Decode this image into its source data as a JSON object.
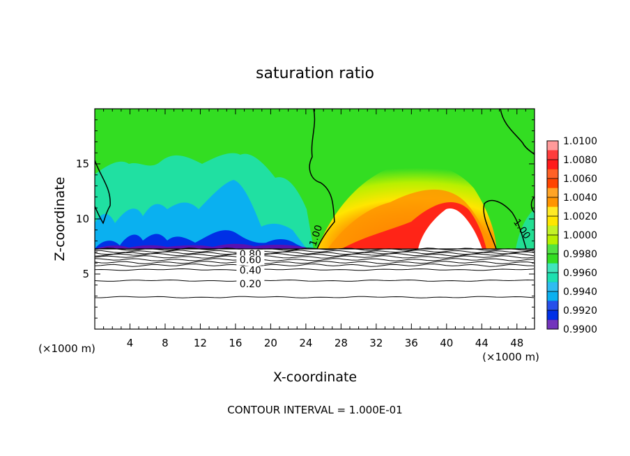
{
  "chart_data": {
    "type": "heatmap",
    "title": "saturation ratio",
    "xlabel": "X-coordinate",
    "ylabel": "Z-coordinate",
    "x_unit_left": "(×1000 m)",
    "x_unit_right": "(×1000 m)",
    "xlim": [
      0,
      50
    ],
    "ylim": [
      0,
      20
    ],
    "x_ticks": [
      4,
      8,
      12,
      16,
      20,
      24,
      28,
      32,
      36,
      40,
      44,
      48
    ],
    "x_tick_labels": [
      "4",
      "8",
      "12",
      "16",
      "20",
      "24",
      "28",
      "32",
      "36",
      "40",
      "44",
      "48"
    ],
    "y_ticks": [
      5,
      10,
      15
    ],
    "y_tick_labels": [
      "5",
      "10",
      "15"
    ],
    "footer": "CONTOUR INTERVAL = 1.000E-01",
    "colorbar": {
      "values": [
        1.01,
        1.008,
        1.006,
        1.004,
        1.002,
        1.0,
        0.998,
        0.996,
        0.994,
        0.992,
        0.99
      ],
      "labels": [
        "1.0100",
        "1.0080",
        "1.0060",
        "1.0040",
        "1.0020",
        "1.0000",
        "0.9980",
        "0.9960",
        "0.9940",
        "0.9920",
        "0.9900"
      ],
      "colors": [
        "#ff9a9a",
        "#ff1a1a",
        "#ff4500",
        "#ff9400",
        "#ffe600",
        "#b8f000",
        "#33dd22",
        "#1ee0b0",
        "#0ab0f0",
        "#0030e6",
        "#5a10b0"
      ]
    },
    "contour_labels": [
      {
        "text": "0.80",
        "x": 17.7,
        "z": 6.85
      },
      {
        "text": "0.60",
        "x": 17.7,
        "z": 6.3
      },
      {
        "text": "0.40",
        "x": 17.7,
        "z": 5.35
      },
      {
        "text": "0.20",
        "x": 17.7,
        "z": 4.1
      },
      {
        "text": "1.00",
        "x": 25.1,
        "z": 8.5
      },
      {
        "text": "1.00",
        "x": 48.6,
        "z": 9.1
      }
    ],
    "surface_contours_z": [
      7.25,
      7.05,
      6.9,
      6.75,
      6.55,
      6.3,
      6.05,
      5.8,
      5.4,
      4.4,
      2.9
    ],
    "cloud_top_z": 7.35,
    "max_region": {
      "x_center": 39.5,
      "z_center": 9.3
    }
  }
}
